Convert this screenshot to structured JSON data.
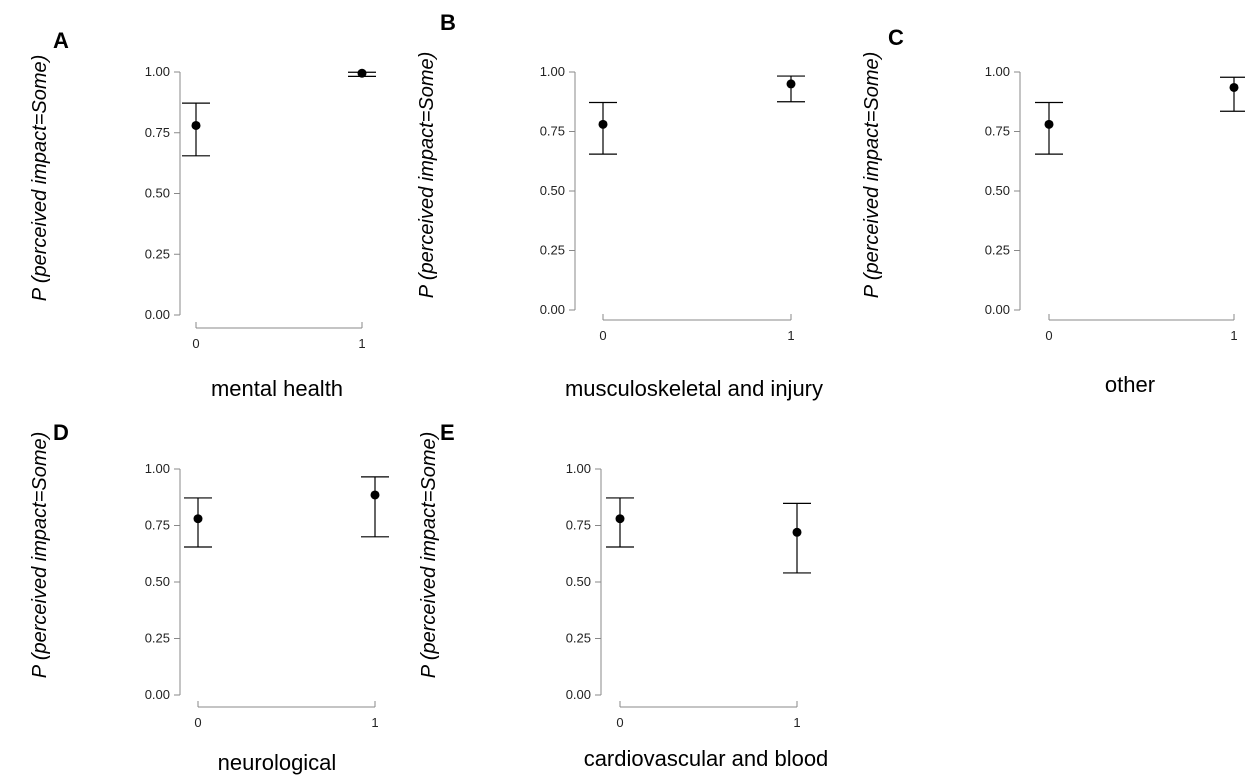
{
  "chart_data": [
    {
      "type": "scatter",
      "panel": "A",
      "xlabel": "mental health",
      "ylabel": "P (perceived impact=Some)",
      "ylabel_var": "P",
      "ylabel_rest": " (perceived impact=Some)",
      "categories": [
        "0",
        "1"
      ],
      "values": [
        0.78,
        0.995
      ],
      "ci_low": [
        0.655,
        0.982
      ],
      "ci_high": [
        0.872,
        0.999
      ],
      "ylim": [
        0,
        1
      ],
      "yticks": [
        "0.00",
        "0.25",
        "0.50",
        "0.75",
        "1.00"
      ],
      "grid": false
    },
    {
      "type": "scatter",
      "panel": "B",
      "xlabel": "musculoskeletal and injury",
      "ylabel": "P (perceived impact=Some)",
      "ylabel_var": "P",
      "ylabel_rest": " (perceived impact=Some)",
      "categories": [
        "0",
        "1"
      ],
      "values": [
        0.78,
        0.95
      ],
      "ci_low": [
        0.655,
        0.875
      ],
      "ci_high": [
        0.872,
        0.983
      ],
      "ylim": [
        0,
        1
      ],
      "yticks": [
        "0.00",
        "0.25",
        "0.50",
        "0.75",
        "1.00"
      ],
      "grid": false
    },
    {
      "type": "scatter",
      "panel": "C",
      "xlabel": "other",
      "ylabel": "P (perceived impact=Some)",
      "ylabel_var": "P",
      "ylabel_rest": " (perceived impact=Some)",
      "categories": [
        "0",
        "1"
      ],
      "values": [
        0.78,
        0.935
      ],
      "ci_low": [
        0.655,
        0.835
      ],
      "ci_high": [
        0.872,
        0.978
      ],
      "ylim": [
        0,
        1
      ],
      "yticks": [
        "0.00",
        "0.25",
        "0.50",
        "0.75",
        "1.00"
      ],
      "grid": false
    },
    {
      "type": "scatter",
      "panel": "D",
      "xlabel": "neurological",
      "ylabel": "P (perceived impact=Some)",
      "ylabel_var": "P",
      "ylabel_rest": " (perceived impact=Some)",
      "categories": [
        "0",
        "1"
      ],
      "values": [
        0.78,
        0.885
      ],
      "ci_low": [
        0.655,
        0.7
      ],
      "ci_high": [
        0.872,
        0.965
      ],
      "ylim": [
        0,
        1
      ],
      "yticks": [
        "0.00",
        "0.25",
        "0.50",
        "0.75",
        "1.00"
      ],
      "grid": false
    },
    {
      "type": "scatter",
      "panel": "E",
      "xlabel": "cardiovascular and blood",
      "ylabel": "P (perceived impact=Some)",
      "ylabel_var": "P",
      "ylabel_rest": " (perceived impact=Some)",
      "categories": [
        "0",
        "1"
      ],
      "values": [
        0.78,
        0.72
      ],
      "ci_low": [
        0.655,
        0.54
      ],
      "ci_high": [
        0.872,
        0.848
      ],
      "ylim": [
        0,
        1
      ],
      "yticks": [
        "0.00",
        "0.25",
        "0.50",
        "0.75",
        "1.00"
      ],
      "grid": false
    }
  ]
}
